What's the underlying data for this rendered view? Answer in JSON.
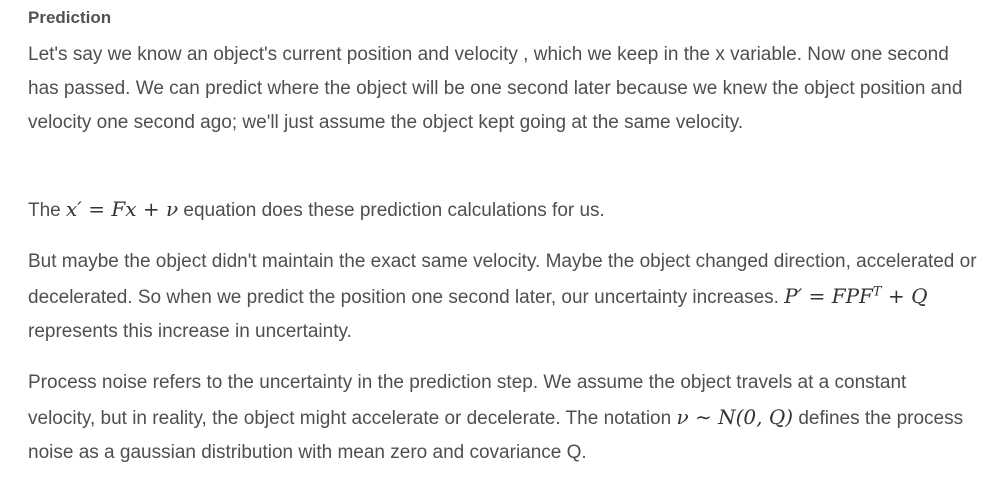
{
  "heading": "Prediction",
  "para1": "Let's say we know an object's current position and velocity , which we keep in the x variable. Now one second has passed. We can predict where the object will be one second later because we knew the object position and velocity one second ago; we'll just assume the object kept going at the same velocity.",
  "para2": {
    "before": "The ",
    "math": "x′ = Fx + ν",
    "after": " equation does these prediction calculations for us."
  },
  "para3": {
    "before": "But maybe the object didn't maintain the exact same velocity. Maybe the object changed direction, accelerated or decelerated. So when we predict the position one second later, our uncertainty increases. ",
    "math_main": "P′ = FPF",
    "math_sup": "T",
    "math_tail": " + Q",
    "after": " represents this increase in uncertainty."
  },
  "para4": {
    "before": "Process noise refers to the uncertainty in the prediction step. We assume the object travels at a constant velocity, but in reality, the object might accelerate or decelerate. The notation ",
    "math": "ν ∼ N(0, Q)",
    "after": " defines the process noise as a gaussian distribution with mean zero and covariance Q."
  }
}
